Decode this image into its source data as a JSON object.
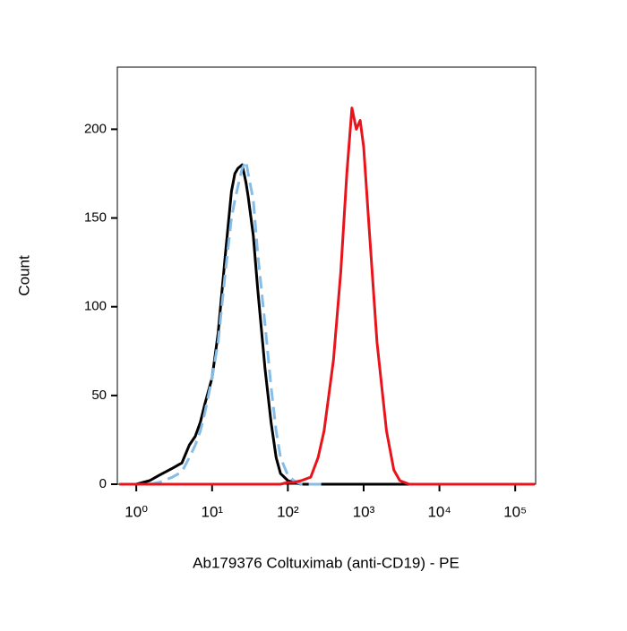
{
  "chart_data": {
    "type": "line",
    "xlabel": "Ab179376 Coltuximab (anti-CD19) - PE",
    "ylabel": "Count",
    "xscale": "log",
    "xlim": [
      0.562,
      186000
    ],
    "ylim": [
      0,
      235
    ],
    "xticks": [
      {
        "value": 1,
        "label": "10⁰"
      },
      {
        "value": 10,
        "label": "10¹"
      },
      {
        "value": 100,
        "label": "10²"
      },
      {
        "value": 1000,
        "label": "10³"
      },
      {
        "value": 10000,
        "label": "10⁴"
      },
      {
        "value": 100000,
        "label": "10⁵"
      }
    ],
    "yticks": [
      0,
      50,
      100,
      150,
      200
    ],
    "x": [
      0.6,
      1,
      1.5,
      2,
      3,
      4,
      5,
      6,
      7,
      8,
      10,
      12,
      15,
      18,
      20,
      22,
      25,
      28,
      30,
      35,
      40,
      50,
      60,
      70,
      80,
      100,
      120,
      150,
      200,
      250,
      300,
      400,
      500,
      600,
      700,
      800,
      900,
      1000,
      1200,
      1500,
      2000,
      2500,
      3000,
      4000,
      5000,
      10000,
      100000,
      180000
    ],
    "series": [
      {
        "color": "#000000",
        "linestyle": "solid",
        "values": [
          0,
          0,
          2,
          5,
          9,
          12,
          22,
          27,
          35,
          45,
          60,
          85,
          130,
          165,
          175,
          178,
          180,
          170,
          162,
          140,
          110,
          65,
          35,
          15,
          6,
          2,
          1,
          0,
          0,
          0,
          0,
          0,
          0,
          0,
          0,
          0,
          0,
          0,
          0,
          0,
          0,
          0,
          0,
          0,
          0,
          0,
          0,
          0
        ]
      },
      {
        "color": "#85bde8",
        "linestyle": "dashed",
        "values": [
          null,
          null,
          0,
          1,
          4,
          7,
          15,
          22,
          30,
          40,
          60,
          80,
          120,
          150,
          160,
          168,
          178,
          182,
          175,
          160,
          130,
          90,
          55,
          30,
          15,
          5,
          2,
          0,
          0,
          0,
          0,
          null,
          null,
          null,
          null,
          null,
          null,
          null,
          null,
          null,
          null,
          null,
          null,
          null,
          null,
          null,
          null,
          null
        ]
      },
      {
        "color": "#e8141b",
        "linestyle": "solid",
        "values": [
          0,
          0,
          0,
          0,
          0,
          0,
          0,
          0,
          0,
          0,
          0,
          0,
          0,
          0,
          0,
          0,
          0,
          0,
          0,
          0,
          0,
          0,
          0,
          0,
          0,
          1,
          1,
          2,
          4,
          15,
          30,
          70,
          120,
          175,
          212,
          200,
          205,
          190,
          140,
          80,
          30,
          8,
          2,
          0,
          0,
          0,
          0,
          0
        ]
      }
    ]
  }
}
